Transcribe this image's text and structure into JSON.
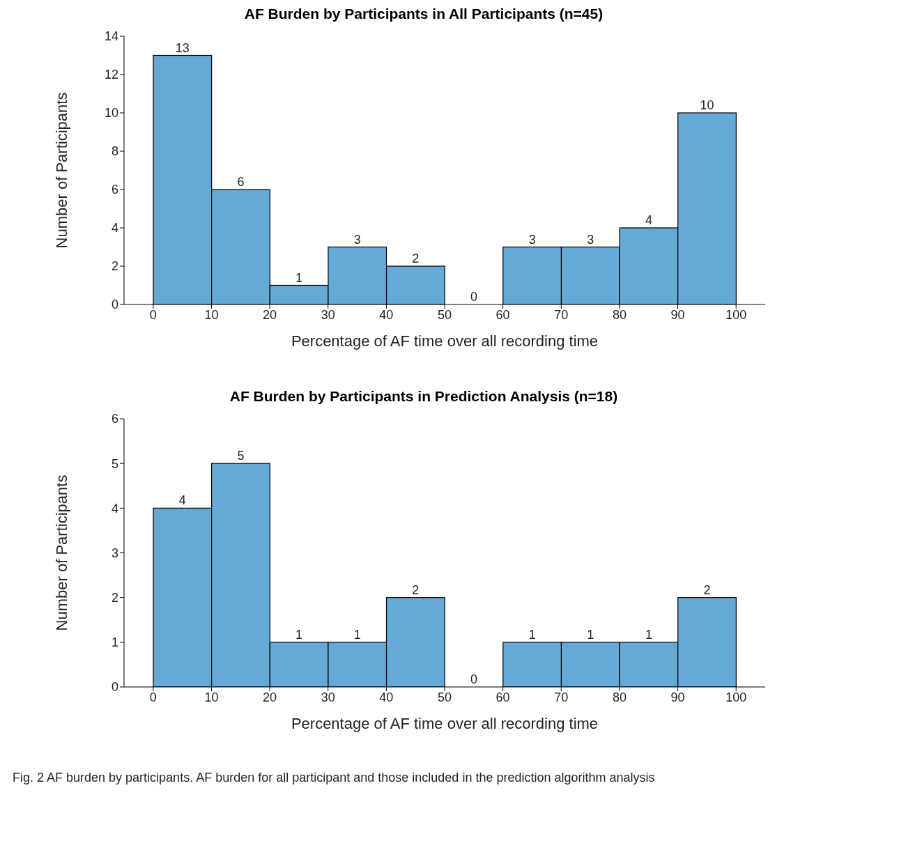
{
  "chart_data": [
    {
      "type": "histogram",
      "title": "AF Burden by Participants in All Participants (n=45)",
      "xlabel": "Percentage of AF time over all recording time",
      "ylabel": "Number of Participants",
      "bins": [
        0,
        10,
        20,
        30,
        40,
        50,
        60,
        70,
        80,
        90,
        100
      ],
      "values": [
        13,
        6,
        1,
        3,
        2,
        0,
        3,
        3,
        4,
        10
      ],
      "color": "#65a9d7",
      "xlim": [
        -5,
        105
      ],
      "xticks": [
        0,
        10,
        20,
        30,
        40,
        50,
        60,
        70,
        80,
        90,
        100
      ],
      "ylim": [
        0,
        14
      ],
      "yticks": [
        0,
        2,
        4,
        6,
        8,
        10,
        12,
        14
      ],
      "data_labels": true
    },
    {
      "type": "histogram",
      "title": "AF Burden by Participants in Prediction Analysis (n=18)",
      "xlabel": "Percentage of AF time over all recording time",
      "ylabel": "Number of Participants",
      "bins": [
        0,
        10,
        20,
        30,
        40,
        50,
        60,
        70,
        80,
        90,
        100
      ],
      "values": [
        4,
        5,
        1,
        1,
        2,
        0,
        1,
        1,
        1,
        2
      ],
      "color": "#65a9d7",
      "xlim": [
        -5,
        105
      ],
      "xticks": [
        0,
        10,
        20,
        30,
        40,
        50,
        60,
        70,
        80,
        90,
        100
      ],
      "ylim": [
        0,
        6
      ],
      "yticks": [
        0,
        1,
        2,
        3,
        4,
        5,
        6
      ],
      "data_labels": true,
      "annotations": [
        "Fig. 2  AF burden by participants. AF burden for all participant and those included in the prediction algorithm analysis"
      ]
    }
  ]
}
